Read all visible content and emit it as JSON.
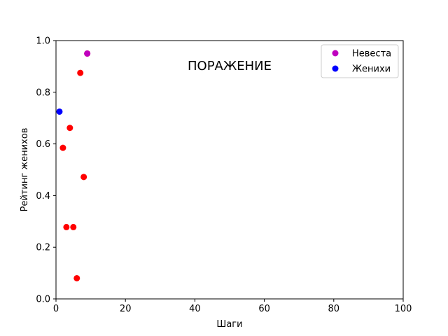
{
  "chart_data": {
    "type": "scatter",
    "title": "",
    "xlabel": "Шаги",
    "ylabel": "Рейтинг женихов",
    "xlim": [
      0,
      100
    ],
    "ylim": [
      0.0,
      1.0
    ],
    "x_ticks": [
      "0",
      "20",
      "40",
      "60",
      "80",
      "100"
    ],
    "y_ticks": [
      "0.0",
      "0.2",
      "0.4",
      "0.6",
      "0.8",
      "1.0"
    ],
    "grid": false,
    "legend_position": "top-right",
    "annotation": "ПОРАЖЕНИЕ",
    "legend": [
      {
        "label": "Невеста",
        "color": "#bf00bf"
      },
      {
        "label": "Женихи",
        "color": "#0000ff"
      }
    ],
    "series": [
      {
        "name": "Женихи",
        "color": "#0000ff",
        "points": [
          {
            "x": 1,
            "y": 0.725
          }
        ]
      },
      {
        "color": "#ff0000",
        "points": [
          {
            "x": 2,
            "y": 0.585
          },
          {
            "x": 3,
            "y": 0.278
          },
          {
            "x": 4,
            "y": 0.662
          },
          {
            "x": 5,
            "y": 0.278
          },
          {
            "x": 6,
            "y": 0.08
          },
          {
            "x": 7,
            "y": 0.875
          },
          {
            "x": 8,
            "y": 0.472
          },
          {
            "x": 9,
            "y": 0.95
          }
        ]
      },
      {
        "name": "Невеста",
        "color": "#bf00bf",
        "points": [
          {
            "x": 9,
            "y": 0.95
          }
        ]
      }
    ]
  }
}
